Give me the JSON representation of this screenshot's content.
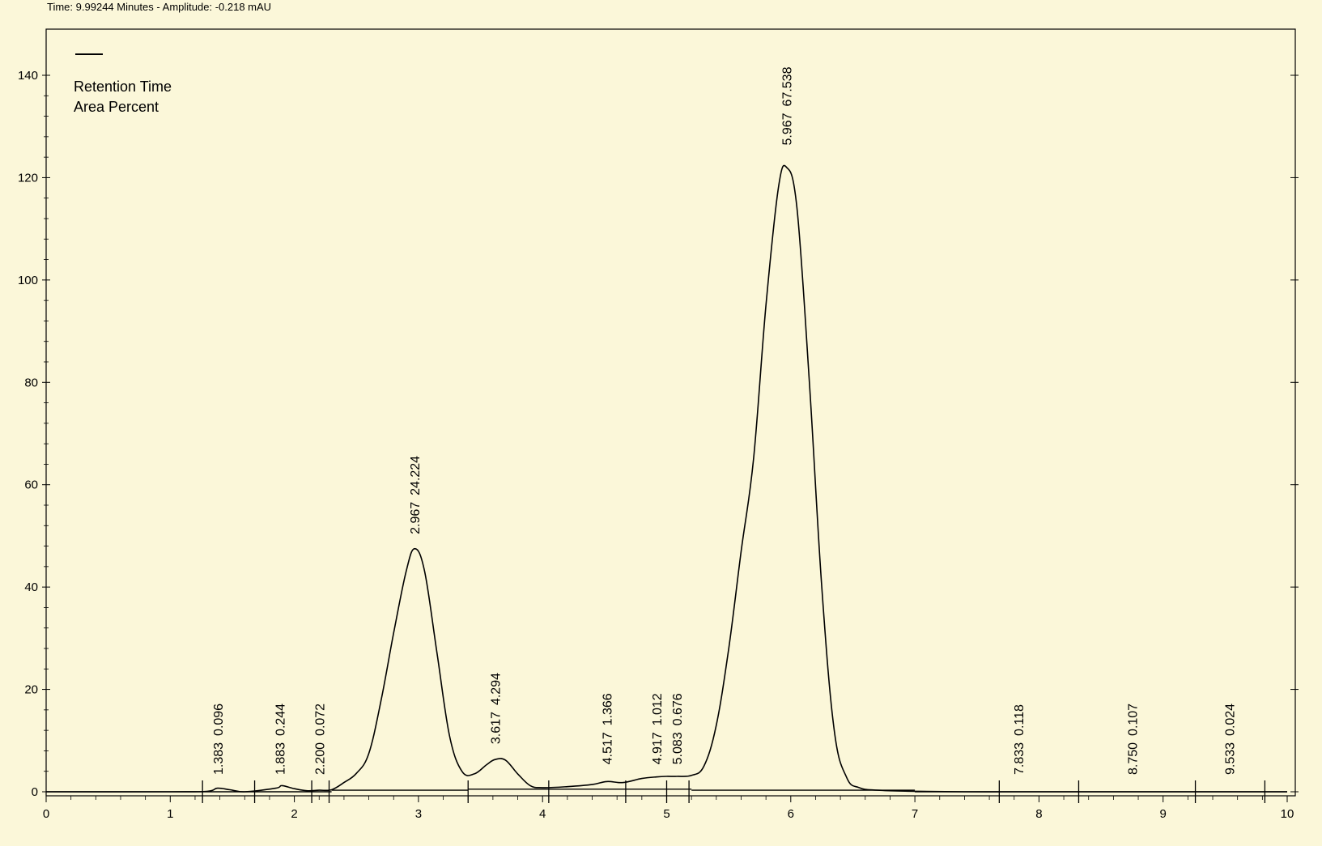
{
  "status": {
    "time_label": "Time:",
    "time_value": "9.99244 Minutes",
    "separator": "-",
    "amplitude_label": "Amplitude:",
    "amplitude_value": "-0.218 mAU"
  },
  "colors": {
    "background": "#fbf7d9",
    "plot_background": "#fbf7d9",
    "trace": "#000000",
    "baseline": "#000000",
    "baseline_highlight": "#cc2a2a"
  },
  "chart_data": {
    "type": "line",
    "title": "",
    "xlabel": "",
    "ylabel": "",
    "xlim": [
      0,
      10
    ],
    "ylim": [
      -2,
      150
    ],
    "x_ticks": [
      "0",
      "1",
      "2",
      "3",
      "4",
      "5",
      "6",
      "7",
      "8",
      "9",
      "10"
    ],
    "y_ticks": [
      "0",
      "20",
      "40",
      "60",
      "80",
      "100",
      "120",
      "140"
    ],
    "legend": {
      "placement": "top-left",
      "lines": [
        "Retention Time",
        "Area Percent"
      ]
    },
    "series": [
      {
        "x": [
          0.0,
          1.0,
          1.3,
          1.38,
          1.48,
          1.6,
          1.85,
          1.9,
          2.0,
          2.1,
          2.2,
          2.3,
          2.4,
          2.5,
          2.6,
          2.7,
          2.8,
          2.9,
          2.97,
          3.05,
          3.15,
          3.25,
          3.35,
          3.45,
          3.55,
          3.617,
          3.7,
          3.8,
          3.9,
          4.0,
          4.2,
          4.4,
          4.517,
          4.65,
          4.8,
          4.917,
          5.0,
          5.083,
          5.2,
          5.3,
          5.4,
          5.5,
          5.6,
          5.7,
          5.8,
          5.9,
          5.967,
          6.05,
          6.15,
          6.25,
          6.35,
          6.45,
          6.55,
          6.7,
          7.0,
          7.4,
          7.833,
          8.3,
          8.75,
          9.2,
          9.533,
          10.0
        ],
        "y": [
          0.0,
          0.0,
          0.1,
          0.7,
          0.4,
          0.0,
          0.7,
          1.2,
          0.6,
          0.2,
          0.3,
          0.4,
          1.8,
          3.6,
          7.5,
          18.0,
          31.0,
          43.0,
          47.5,
          43.0,
          27.0,
          11.0,
          4.0,
          3.5,
          5.3,
          6.3,
          6.2,
          3.5,
          1.2,
          0.8,
          1.0,
          1.4,
          2.0,
          1.8,
          2.6,
          2.9,
          3.0,
          3.0,
          3.2,
          5.0,
          13.0,
          28.0,
          47.0,
          65.0,
          95.0,
          118.0,
          122.0,
          114.0,
          80.0,
          40.0,
          12.0,
          2.8,
          0.8,
          0.3,
          0.1,
          0.0,
          0.0,
          0.0,
          0.0,
          0.0,
          0.0,
          0.0
        ]
      }
    ],
    "baseline_segments": [
      {
        "x_start": 0.0,
        "x_end": 2.3,
        "y": 0.0
      },
      {
        "x_start": 2.3,
        "x_end": 3.4,
        "y": 0.3
      },
      {
        "x_start": 3.4,
        "x_end": 4.05,
        "y": 0.5
      },
      {
        "x_start": 4.05,
        "x_end": 5.2,
        "y": 0.5
      },
      {
        "x_start": 5.2,
        "x_end": 7.0,
        "y": 0.3
      },
      {
        "x_start": 7.0,
        "x_end": 10.0,
        "y": 0.0
      }
    ],
    "integration_marks": [
      1.26,
      1.68,
      2.14,
      2.28,
      3.4,
      4.05,
      4.67,
      5.0,
      5.18,
      7.68,
      8.32,
      9.26,
      9.82
    ],
    "peaks": [
      {
        "rt": 1.383,
        "rt_label": "1.383",
        "area_label": "0.096",
        "label_y": 3.0
      },
      {
        "rt": 1.883,
        "rt_label": "1.883",
        "area_label": "0.244",
        "label_y": 3.0
      },
      {
        "rt": 2.2,
        "rt_label": "2.200",
        "area_label": "0.072",
        "label_y": 3.0
      },
      {
        "rt": 2.967,
        "rt_label": "2.967",
        "area_label": "24.224",
        "label_y": 50.0
      },
      {
        "rt": 3.617,
        "rt_label": "3.617",
        "area_label": "4.294",
        "label_y": 9.0
      },
      {
        "rt": 4.517,
        "rt_label": "4.517",
        "area_label": "1.366",
        "label_y": 5.0
      },
      {
        "rt": 4.917,
        "rt_label": "4.917",
        "area_label": "1.012",
        "label_y": 5.0
      },
      {
        "rt": 5.083,
        "rt_label": "5.083",
        "area_label": "0.676",
        "label_y": 5.0
      },
      {
        "rt": 5.967,
        "rt_label": "5.967",
        "area_label": "67.538",
        "label_y": 126.0
      },
      {
        "rt": 7.833,
        "rt_label": "7.833",
        "area_label": "0.118",
        "label_y": 3.0
      },
      {
        "rt": 8.75,
        "rt_label": "8.750",
        "area_label": "0.107",
        "label_y": 3.0
      },
      {
        "rt": 9.533,
        "rt_label": "9.533",
        "area_label": "0.024",
        "label_y": 3.0
      }
    ]
  }
}
